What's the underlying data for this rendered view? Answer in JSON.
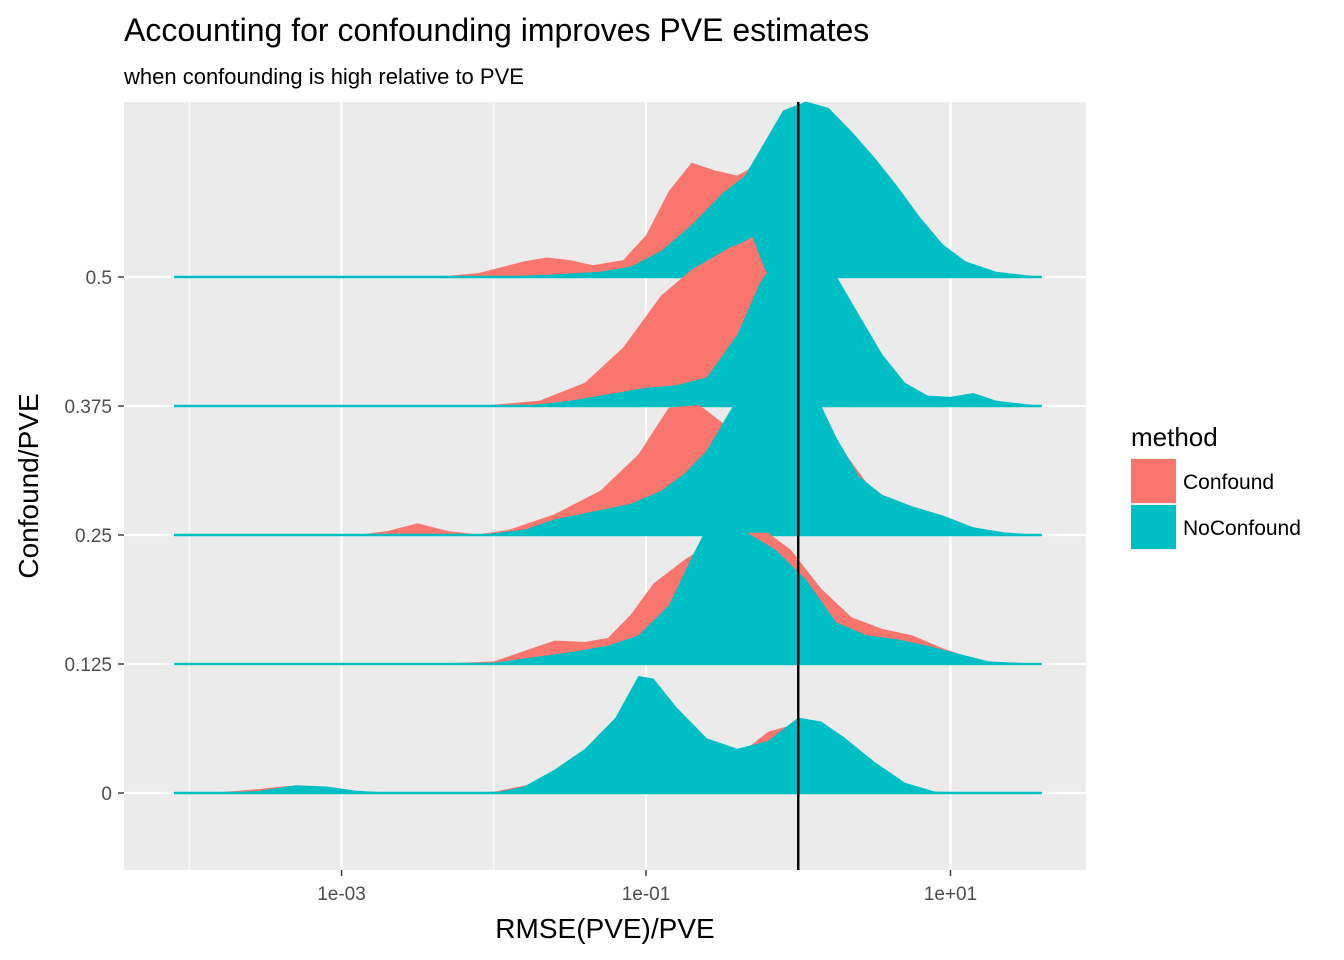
{
  "chart_data": {
    "type": "area",
    "title": "Accounting for confounding improves PVE estimates",
    "subtitle": "when confounding is high relative to PVE",
    "xlabel": "RMSE(PVE)/PVE",
    "ylabel": "Confound/PVE",
    "x_scale": "log10",
    "x_tick_values": [
      0.001,
      0.1,
      10
    ],
    "x_tick_labels": [
      "1e-03",
      "1e-01",
      "1e+01"
    ],
    "xlim": [
      0.000316,
      100
    ],
    "categories": [
      "0",
      "0.125",
      "0.25",
      "0.375",
      "0.5"
    ],
    "reference_line_x": 1,
    "grid": true,
    "legend": {
      "title": "method",
      "position": "right",
      "entries": [
        {
          "label": "Confound",
          "color": "#F8766D"
        },
        {
          "label": "NoConfound",
          "color": "#00BFC4"
        }
      ]
    },
    "series": [
      {
        "name": "Confound",
        "color": "#F8766D",
        "x_range_log10": [
          -4.1,
          1.6
        ],
        "ridges": [
          {
            "category": "0",
            "points": [
              [
                -4.1,
                0
              ],
              [
                -3.8,
                0.006
              ],
              [
                -3.55,
                0.03
              ],
              [
                -3.35,
                0.055
              ],
              [
                -3.15,
                0.02
              ],
              [
                -2.9,
                0.004
              ],
              [
                -2.7,
                0
              ],
              [
                -2.4,
                0
              ],
              [
                -2.0,
                0.01
              ],
              [
                -1.7,
                0.08
              ],
              [
                -1.4,
                0.28
              ],
              [
                -1.2,
                0.52
              ],
              [
                -1.05,
                0.68
              ],
              [
                -0.95,
                0.7
              ],
              [
                -0.82,
                0.6
              ],
              [
                -0.65,
                0.38
              ],
              [
                -0.5,
                0.25
              ],
              [
                -0.35,
                0.33
              ],
              [
                -0.2,
                0.47
              ],
              [
                -0.05,
                0.52
              ],
              [
                0.1,
                0.47
              ],
              [
                0.3,
                0.33
              ],
              [
                0.5,
                0.15
              ],
              [
                0.7,
                0.04
              ],
              [
                0.9,
                0.01
              ],
              [
                1.1,
                0
              ],
              [
                1.6,
                0
              ]
            ]
          },
          {
            "category": "0.125",
            "points": [
              [
                -4.1,
                0
              ],
              [
                -2.4,
                0
              ],
              [
                -2.0,
                0.02
              ],
              [
                -1.8,
                0.1
              ],
              [
                -1.6,
                0.18
              ],
              [
                -1.4,
                0.17
              ],
              [
                -1.25,
                0.2
              ],
              [
                -1.1,
                0.38
              ],
              [
                -0.95,
                0.62
              ],
              [
                -0.75,
                0.8
              ],
              [
                -0.55,
                0.95
              ],
              [
                -0.35,
                1.01
              ],
              [
                -0.2,
                1.01
              ],
              [
                -0.05,
                0.88
              ],
              [
                0.15,
                0.58
              ],
              [
                0.35,
                0.36
              ],
              [
                0.55,
                0.27
              ],
              [
                0.75,
                0.22
              ],
              [
                0.95,
                0.12
              ],
              [
                1.2,
                0.02
              ],
              [
                1.6,
                0
              ]
            ]
          },
          {
            "category": "0.25",
            "points": [
              [
                -4.1,
                0
              ],
              [
                -2.9,
                0
              ],
              [
                -2.7,
                0.03
              ],
              [
                -2.5,
                0.09
              ],
              [
                -2.3,
                0.03
              ],
              [
                -2.1,
                0.005
              ],
              [
                -1.9,
                0.04
              ],
              [
                -1.6,
                0.16
              ],
              [
                -1.3,
                0.34
              ],
              [
                -1.05,
                0.62
              ],
              [
                -0.85,
                0.98
              ],
              [
                -0.65,
                1.0
              ],
              [
                -0.45,
                0.82
              ],
              [
                -0.25,
                0.66
              ],
              [
                -0.1,
                0.67
              ],
              [
                0.05,
                1.0
              ],
              [
                0.25,
                0.72
              ],
              [
                0.45,
                0.4
              ],
              [
                0.65,
                0.22
              ],
              [
                0.85,
                0.1
              ],
              [
                1.1,
                0.02
              ],
              [
                1.6,
                0
              ]
            ]
          },
          {
            "category": "0.375",
            "points": [
              [
                -4.1,
                0
              ],
              [
                -2.1,
                0
              ],
              [
                -1.7,
                0.04
              ],
              [
                -1.4,
                0.18
              ],
              [
                -1.15,
                0.45
              ],
              [
                -0.9,
                0.85
              ],
              [
                -0.7,
                1.05
              ],
              [
                -0.55,
                1.15
              ],
              [
                -0.45,
                1.22
              ],
              [
                -0.38,
                1.25
              ],
              [
                -0.3,
                1.3
              ],
              [
                -0.22,
                1.05
              ],
              [
                -0.1,
                0.9
              ],
              [
                0.05,
                0.75
              ],
              [
                0.25,
                0.52
              ],
              [
                0.45,
                0.36
              ],
              [
                0.65,
                0.14
              ],
              [
                0.85,
                0.04
              ],
              [
                1.1,
                0.01
              ],
              [
                1.6,
                0
              ]
            ]
          },
          {
            "category": "0.5",
            "points": [
              [
                -4.1,
                0
              ],
              [
                -2.4,
                0
              ],
              [
                -2.1,
                0.03
              ],
              [
                -1.8,
                0.12
              ],
              [
                -1.65,
                0.15
              ],
              [
                -1.5,
                0.13
              ],
              [
                -1.35,
                0.09
              ],
              [
                -1.15,
                0.13
              ],
              [
                -1.0,
                0.32
              ],
              [
                -0.85,
                0.66
              ],
              [
                -0.7,
                0.88
              ],
              [
                -0.55,
                0.82
              ],
              [
                -0.4,
                0.78
              ],
              [
                -0.25,
                0.88
              ],
              [
                -0.05,
                0.95
              ],
              [
                0.15,
                0.98
              ],
              [
                0.35,
                0.7
              ],
              [
                0.55,
                0.5
              ],
              [
                0.75,
                0.28
              ],
              [
                0.95,
                0.1
              ],
              [
                1.2,
                0.02
              ],
              [
                1.6,
                0
              ]
            ]
          }
        ]
      },
      {
        "name": "NoConfound",
        "color": "#00BFC4",
        "x_range_log10": [
          -4.1,
          1.6
        ],
        "ridges": [
          {
            "category": "0",
            "points": [
              [
                -4.1,
                0
              ],
              [
                -3.8,
                0.004
              ],
              [
                -3.55,
                0.015
              ],
              [
                -3.3,
                0.06
              ],
              [
                -3.1,
                0.05
              ],
              [
                -2.9,
                0.018
              ],
              [
                -2.7,
                0.003
              ],
              [
                -2.4,
                0
              ],
              [
                -2.0,
                0
              ],
              [
                -1.8,
                0.05
              ],
              [
                -1.6,
                0.18
              ],
              [
                -1.4,
                0.34
              ],
              [
                -1.2,
                0.58
              ],
              [
                -1.05,
                0.9
              ],
              [
                -0.95,
                0.88
              ],
              [
                -0.8,
                0.66
              ],
              [
                -0.6,
                0.42
              ],
              [
                -0.4,
                0.34
              ],
              [
                -0.2,
                0.4
              ],
              [
                0.0,
                0.58
              ],
              [
                0.15,
                0.55
              ],
              [
                0.3,
                0.43
              ],
              [
                0.5,
                0.24
              ],
              [
                0.7,
                0.08
              ],
              [
                0.9,
                0.01
              ],
              [
                1.6,
                0
              ]
            ]
          },
          {
            "category": "0.125",
            "points": [
              [
                -4.1,
                0
              ],
              [
                -2.4,
                0
              ],
              [
                -2.0,
                0.01
              ],
              [
                -1.75,
                0.05
              ],
              [
                -1.5,
                0.09
              ],
              [
                -1.25,
                0.14
              ],
              [
                -1.05,
                0.22
              ],
              [
                -0.85,
                0.45
              ],
              [
                -0.7,
                0.82
              ],
              [
                -0.6,
                1.05
              ],
              [
                -0.5,
                1.08
              ],
              [
                -0.35,
                1.02
              ],
              [
                -0.15,
                0.88
              ],
              [
                0.05,
                0.65
              ],
              [
                0.25,
                0.32
              ],
              [
                0.45,
                0.22
              ],
              [
                0.65,
                0.19
              ],
              [
                0.85,
                0.14
              ],
              [
                1.05,
                0.08
              ],
              [
                1.25,
                0.02
              ],
              [
                1.6,
                0
              ]
            ]
          },
          {
            "category": "0.25",
            "points": [
              [
                -4.1,
                0
              ],
              [
                -2.1,
                0
              ],
              [
                -1.8,
                0.04
              ],
              [
                -1.6,
                0.12
              ],
              [
                -1.35,
                0.18
              ],
              [
                -1.1,
                0.24
              ],
              [
                -0.9,
                0.34
              ],
              [
                -0.75,
                0.47
              ],
              [
                -0.6,
                0.65
              ],
              [
                -0.45,
                0.95
              ],
              [
                -0.3,
                1.22
              ],
              [
                -0.2,
                1.28
              ],
              [
                -0.05,
                1.25
              ],
              [
                0.1,
                1.12
              ],
              [
                0.25,
                0.75
              ],
              [
                0.4,
                0.45
              ],
              [
                0.55,
                0.31
              ],
              [
                0.75,
                0.22
              ],
              [
                0.95,
                0.15
              ],
              [
                1.15,
                0.06
              ],
              [
                1.35,
                0.02
              ],
              [
                1.6,
                0
              ]
            ]
          },
          {
            "category": "0.375",
            "points": [
              [
                -4.1,
                0
              ],
              [
                -1.8,
                0
              ],
              [
                -1.5,
                0.04
              ],
              [
                -1.2,
                0.1
              ],
              [
                -1.0,
                0.14
              ],
              [
                -0.8,
                0.16
              ],
              [
                -0.6,
                0.22
              ],
              [
                -0.4,
                0.55
              ],
              [
                -0.25,
                0.95
              ],
              [
                -0.15,
                1.12
              ],
              [
                -0.05,
                1.22
              ],
              [
                0.1,
                1.2
              ],
              [
                0.25,
                1.0
              ],
              [
                0.4,
                0.7
              ],
              [
                0.55,
                0.4
              ],
              [
                0.7,
                0.18
              ],
              [
                0.85,
                0.08
              ],
              [
                1.0,
                0.07
              ],
              [
                1.15,
                0.1
              ],
              [
                1.3,
                0.04
              ],
              [
                1.6,
                0
              ]
            ]
          },
          {
            "category": "0.5",
            "points": [
              [
                -4.1,
                0
              ],
              [
                -2.0,
                0
              ],
              [
                -1.6,
                0.02
              ],
              [
                -1.3,
                0.04
              ],
              [
                -1.1,
                0.08
              ],
              [
                -0.9,
                0.2
              ],
              [
                -0.7,
                0.4
              ],
              [
                -0.5,
                0.64
              ],
              [
                -0.35,
                0.78
              ],
              [
                -0.25,
                0.98
              ],
              [
                -0.1,
                1.28
              ],
              [
                0.05,
                1.35
              ],
              [
                0.2,
                1.3
              ],
              [
                0.35,
                1.12
              ],
              [
                0.5,
                0.92
              ],
              [
                0.65,
                0.7
              ],
              [
                0.8,
                0.46
              ],
              [
                0.95,
                0.25
              ],
              [
                1.1,
                0.12
              ],
              [
                1.3,
                0.04
              ],
              [
                1.6,
                0
              ]
            ]
          }
        ]
      }
    ]
  }
}
